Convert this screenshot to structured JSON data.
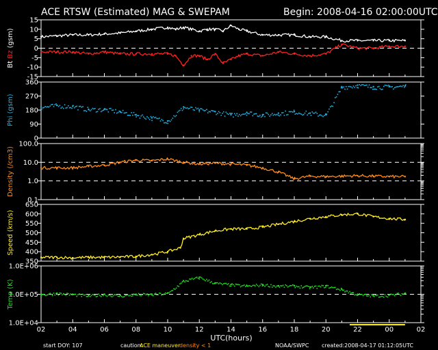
{
  "header": {
    "title": "ACE RTSW (Estimated) MAG & SWEPAM",
    "begin": "Begin: 2008-04-16 02:00:00UTC"
  },
  "footer": {
    "start_doy": "start DOY: 107",
    "caution": "caution:",
    "caution_maneuver": "ACE maneuver",
    "caution_density": "density < 1",
    "agency": "NOAA/SWPC",
    "created": "created:2008-04-17 01:12:05UTC"
  },
  "colors": {
    "bt": "#ffffff",
    "bz": "#ff2020",
    "phi": "#22b4e6",
    "density": "#ff8c1a",
    "speed": "#ffee22",
    "temp": "#22e022",
    "maneuver": "#ffee22",
    "caution_density": "#ff8c1a"
  },
  "chart_data": [
    {
      "type": "line",
      "panel": "mag",
      "ylabel_parts": [
        "Bt",
        "Bz",
        "(gsm)"
      ],
      "ylim": [
        -15,
        15
      ],
      "yticks": [
        "15",
        "10",
        "5",
        "0",
        "-5",
        "-10",
        "-15"
      ],
      "dashed_ref": [
        0
      ],
      "x": [
        2,
        3,
        4,
        5,
        6,
        7,
        8,
        9,
        10,
        10.5,
        11,
        11.5,
        12,
        12.5,
        13,
        13.5,
        14,
        14.5,
        15,
        16,
        17,
        18,
        19,
        20,
        21,
        22,
        23,
        24,
        25
      ],
      "series": [
        {
          "name": "Bt",
          "values": [
            6,
            6.5,
            7,
            7,
            7.5,
            8,
            9,
            10,
            11,
            10,
            11,
            10,
            9,
            10,
            10,
            9,
            12,
            10,
            9,
            7,
            7,
            7,
            6,
            6,
            4,
            4,
            4,
            4,
            4
          ]
        },
        {
          "name": "Bz",
          "values": [
            -2,
            -2,
            -2,
            -3,
            -2,
            -3,
            -3,
            -3,
            -3,
            -4,
            -9,
            -4,
            -4,
            -6,
            -3,
            -8,
            -6,
            -4,
            -3,
            -4,
            -2,
            -3,
            -4,
            -3,
            2,
            0,
            0,
            1,
            1
          ]
        }
      ]
    },
    {
      "type": "scatter",
      "panel": "phi",
      "ylabel": "Phi (gsm)",
      "ylim": [
        0,
        360
      ],
      "yticks": [
        "360",
        "270",
        "180",
        "90",
        "0"
      ],
      "x": [
        2,
        3,
        4,
        5,
        6,
        7,
        8,
        9,
        10,
        11,
        12,
        13,
        14,
        15,
        16,
        17,
        18,
        19,
        20,
        21,
        22,
        23,
        24,
        25
      ],
      "series": [
        {
          "name": "Phi",
          "values": [
            200,
            210,
            205,
            185,
            185,
            170,
            150,
            130,
            110,
            200,
            180,
            170,
            150,
            165,
            150,
            160,
            170,
            160,
            150,
            330,
            340,
            330,
            330,
            335
          ]
        }
      ]
    },
    {
      "type": "line",
      "panel": "density",
      "ylabel": "Density (/cm3)",
      "yscale": "log",
      "ylim": [
        0.1,
        100
      ],
      "yticks": [
        "100.0",
        "10.0",
        "1.0",
        "0.1"
      ],
      "dashed_ref": [
        1,
        10
      ],
      "x": [
        2,
        3,
        4,
        5,
        6,
        7,
        8,
        9,
        10,
        11,
        12,
        13,
        14,
        15,
        16,
        17,
        18,
        19,
        20,
        21,
        22,
        23,
        24,
        25
      ],
      "series": [
        {
          "name": "Density",
          "values": [
            5,
            5,
            5,
            6,
            7,
            10,
            13,
            12,
            15,
            10,
            8,
            9,
            8,
            7,
            5,
            3,
            1.3,
            1.8,
            1.7,
            1.8,
            1.9,
            1.8,
            1.7,
            1.7
          ]
        }
      ]
    },
    {
      "type": "line",
      "panel": "speed",
      "ylabel": "Speed (km/s)",
      "ylim": [
        350,
        650
      ],
      "yticks": [
        "650",
        "600",
        "550",
        "500",
        "450",
        "400",
        "350"
      ],
      "x": [
        2,
        3,
        4,
        5,
        6,
        7,
        8,
        9,
        10,
        10.8,
        11,
        12,
        13,
        14,
        15,
        16,
        17,
        18,
        19,
        20,
        21,
        22,
        23,
        24,
        25
      ],
      "series": [
        {
          "name": "Speed",
          "values": [
            370,
            370,
            368,
            370,
            370,
            372,
            375,
            385,
            400,
            420,
            470,
            490,
            510,
            520,
            520,
            530,
            545,
            560,
            575,
            585,
            595,
            600,
            585,
            575,
            570
          ]
        }
      ]
    },
    {
      "type": "scatter",
      "panel": "temp",
      "ylabel": "Temp (K)",
      "yscale": "log",
      "ylim": [
        10000,
        1000000
      ],
      "yticks": [
        "1.0E+06",
        "1.0E+05",
        "1.0E+04"
      ],
      "dashed_ref": [
        100000
      ],
      "x": [
        2,
        3,
        4,
        5,
        6,
        7,
        8,
        9,
        10,
        11,
        12,
        13,
        14,
        15,
        16,
        17,
        18,
        19,
        20,
        21,
        22,
        23,
        24,
        25
      ],
      "series": [
        {
          "name": "Temp",
          "values": [
            100000,
            110000,
            100000,
            90000,
            100000,
            90000,
            100000,
            100000,
            110000,
            300000,
            400000,
            250000,
            220000,
            200000,
            220000,
            200000,
            200000,
            180000,
            200000,
            150000,
            100000,
            90000,
            95000,
            110000
          ]
        }
      ]
    }
  ],
  "xaxis": {
    "ticks": [
      "02",
      "04",
      "06",
      "08",
      "10",
      "12",
      "14",
      "16",
      "18",
      "20",
      "22",
      "00",
      "02"
    ],
    "label": "UTC(hours)",
    "range": [
      2,
      26
    ],
    "maneuver_hours": [
      21.5,
      25
    ]
  }
}
